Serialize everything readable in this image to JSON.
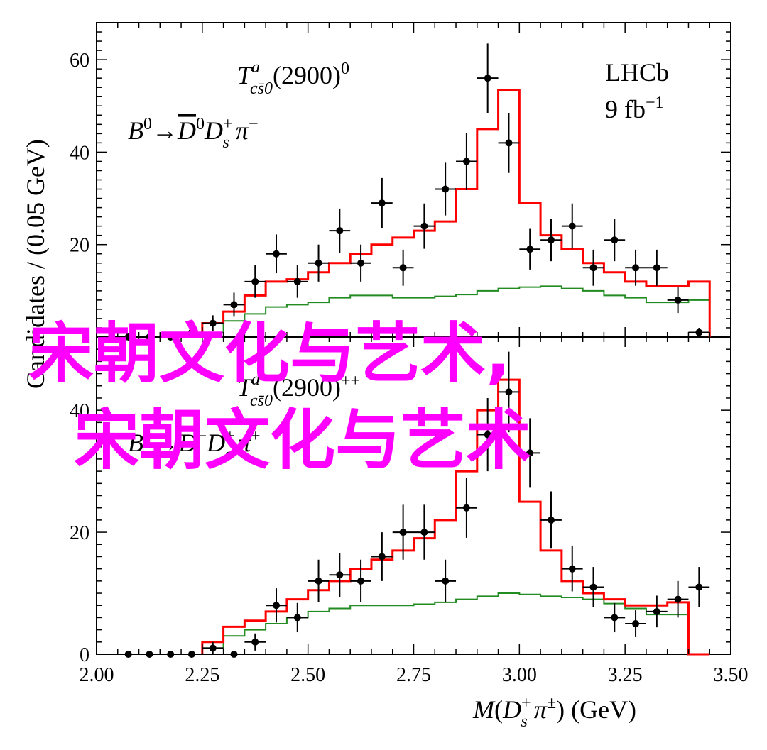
{
  "chart_data": [
    {
      "type": "line",
      "panel": "top",
      "title_italic": "T",
      "title_sup": "a",
      "title_sub": "cs̄0",
      "title_rest": "(2900)",
      "title_sup2": "0",
      "decay_B": "B",
      "decay_B_sup": "0",
      "decay_arrow": "→",
      "decay_Dbar": "D",
      "decay_Dbar_sup": "0",
      "decay_Ds": "D",
      "decay_Ds_sub": "s",
      "decay_Ds_sup": "+",
      "decay_pi": " π",
      "decay_pi_sup": "−",
      "experiment": "LHCb",
      "lumi": "9 fb",
      "lumi_sup": "−1",
      "ylim": [
        0,
        68
      ],
      "yticks": [
        "20",
        "40",
        "60"
      ],
      "ytick_values": [
        20,
        40,
        60
      ],
      "data_points": {
        "x": [
          2.075,
          2.125,
          2.175,
          2.225,
          2.275,
          2.325,
          2.375,
          2.425,
          2.475,
          2.525,
          2.575,
          2.625,
          2.675,
          2.725,
          2.775,
          2.825,
          2.875,
          2.925,
          2.975,
          3.025,
          3.075,
          3.125,
          3.175,
          3.225,
          3.275,
          3.325,
          3.375,
          3.425
        ],
        "y": [
          0,
          0,
          0,
          1,
          3,
          7,
          12,
          18,
          12,
          16,
          23,
          16,
          29,
          15,
          24,
          32,
          38,
          56,
          42,
          19,
          21,
          24,
          15,
          21,
          15,
          15,
          8,
          1
        ],
        "err": [
          0,
          0,
          0,
          1,
          1.7,
          2.6,
          3.5,
          4.2,
          3.5,
          4,
          4.8,
          4,
          5.4,
          3.9,
          4.9,
          5.7,
          6.2,
          7.5,
          6.5,
          4.4,
          4.6,
          4.9,
          3.9,
          4.6,
          3.9,
          3.9,
          2.8,
          1
        ]
      },
      "total_fit": {
        "edges": [
          2.25,
          2.3,
          2.35,
          2.4,
          2.45,
          2.5,
          2.55,
          2.6,
          2.65,
          2.7,
          2.75,
          2.8,
          2.85,
          2.9,
          2.95,
          3.0,
          3.05,
          3.1,
          3.15,
          3.2,
          3.25,
          3.3,
          3.35,
          3.4,
          3.45
        ],
        "values": [
          3,
          5.5,
          9,
          12,
          12.5,
          14,
          16,
          18,
          20,
          21.5,
          23,
          25,
          32,
          45,
          53.5,
          29,
          22,
          19,
          16,
          14,
          12,
          11,
          11,
          12
        ]
      },
      "background": {
        "edges": [
          2.25,
          2.3,
          2.35,
          2.4,
          2.45,
          2.5,
          2.55,
          2.6,
          2.65,
          2.7,
          2.75,
          2.8,
          2.85,
          2.9,
          2.95,
          3.0,
          3.05,
          3.1,
          3.15,
          3.2,
          3.25,
          3.3,
          3.35,
          3.4,
          3.45
        ],
        "values": [
          1,
          3.5,
          5,
          6.5,
          7,
          7.5,
          8.5,
          9,
          9,
          8.5,
          8.5,
          8.8,
          9.2,
          10,
          10.5,
          10.8,
          11,
          10.5,
          10,
          9,
          8.5,
          7.5,
          7.5,
          8
        ]
      }
    },
    {
      "type": "line",
      "panel": "bottom",
      "title_italic": "T",
      "title_sup": "a",
      "title_sub": "cs̄0",
      "title_rest": "(2900)",
      "title_sup2": "++",
      "decay_B": "B",
      "decay_B_sup": "+",
      "decay_arrow": "→",
      "decay_D": "D",
      "decay_D_sup": "−",
      "decay_Ds": "D",
      "decay_Ds_sub": "s",
      "decay_Ds_sup": "+",
      "decay_pi": " π",
      "decay_pi_sup": "+",
      "ylim": [
        0,
        52
      ],
      "yticks": [
        "0",
        "20",
        "40"
      ],
      "ytick_values": [
        0,
        20,
        40
      ],
      "data_points": {
        "x": [
          2.075,
          2.125,
          2.175,
          2.225,
          2.275,
          2.325,
          2.375,
          2.425,
          2.475,
          2.525,
          2.575,
          2.625,
          2.675,
          2.725,
          2.775,
          2.825,
          2.875,
          2.925,
          2.975,
          3.025,
          3.075,
          3.125,
          3.175,
          3.225,
          3.275,
          3.325,
          3.375,
          3.425
        ],
        "y": [
          0,
          0,
          0,
          0,
          1,
          0,
          2,
          8,
          6,
          12,
          13,
          12,
          16,
          20,
          20,
          12,
          24,
          36,
          43,
          33,
          22,
          14,
          11,
          6,
          5,
          7,
          9,
          11
        ],
        "err": [
          0,
          0,
          0,
          0,
          1,
          0,
          1.4,
          2.8,
          2.4,
          3.5,
          3.6,
          3.5,
          4,
          4.5,
          4.5,
          3.5,
          4.9,
          6,
          6.6,
          5.7,
          4.7,
          3.7,
          3.3,
          2.4,
          2.2,
          2.6,
          3,
          3.3
        ]
      },
      "total_fit": {
        "edges": [
          2.25,
          2.3,
          2.35,
          2.4,
          2.45,
          2.5,
          2.55,
          2.6,
          2.65,
          2.7,
          2.75,
          2.8,
          2.85,
          2.9,
          2.95,
          3.0,
          3.05,
          3.1,
          3.15,
          3.2,
          3.25,
          3.3,
          3.35,
          3.4,
          3.45
        ],
        "values": [
          2,
          4.5,
          5.5,
          7,
          9,
          10.5,
          12,
          14,
          15.5,
          17,
          19,
          22,
          30,
          40,
          45,
          25,
          17,
          12,
          10,
          9,
          8,
          8,
          8.5,
          0
        ]
      },
      "background": {
        "edges": [
          2.25,
          2.3,
          2.35,
          2.4,
          2.45,
          2.5,
          2.55,
          2.6,
          2.65,
          2.7,
          2.75,
          2.8,
          2.85,
          2.9,
          2.95,
          3.0,
          3.05,
          3.1,
          3.15,
          3.2,
          3.25,
          3.3,
          3.35,
          3.4,
          3.45
        ],
        "values": [
          1,
          3,
          4,
          5,
          6,
          7,
          7.5,
          8,
          8,
          8,
          8.2,
          8.5,
          9,
          9.5,
          10,
          9.8,
          9.5,
          9.3,
          9,
          8.3,
          7.5,
          6.5,
          6.5,
          0
        ]
      }
    }
  ],
  "axes": {
    "ylabel": "Candidates / (0.05 GeV)",
    "xlabel_M": "M",
    "xlabel_open": "(",
    "xlabel_D": "D",
    "xlabel_D_sub": "s",
    "xlabel_D_sup": "+",
    "xlabel_pi": " π",
    "xlabel_pi_sup": "±",
    "xlabel_close": ") (GeV)",
    "xlim": [
      2.0,
      3.5
    ],
    "xticks": [
      "2.00",
      "2.25",
      "2.50",
      "2.75",
      "3.00",
      "3.25",
      "3.50"
    ],
    "xtick_values": [
      2.0,
      2.25,
      2.5,
      2.75,
      3.0,
      3.25,
      3.5
    ]
  },
  "overlay": {
    "line1": "宋朝文化与艺术,",
    "line2": "宋朝文化与艺术"
  },
  "colors": {
    "data": "#000000",
    "total_fit": "#ff0000",
    "background": "#228b22",
    "overlay": "#ff00ff"
  }
}
